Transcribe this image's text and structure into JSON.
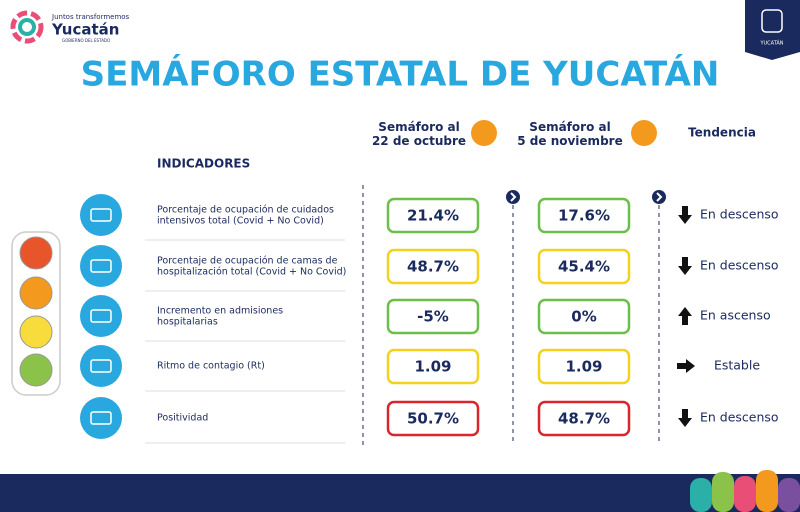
{
  "header": {
    "logo_tagline": "Juntos transformemos",
    "logo_name": "Yucatán",
    "logo_sub": "GOBIERNO DEL ESTADO",
    "emblem_label": "YUCATÁN",
    "title": "SEMÁFORO ESTATAL DE YUCATÁN"
  },
  "table": {
    "indicators_header": "INDICADORES",
    "columns": [
      "Semáforo al\n22 de octubre",
      "Semáforo al\n5 de noviembre",
      "Tendencia"
    ],
    "column_colors": [
      "#f39a1e",
      "#f39a1e"
    ],
    "rows": [
      {
        "indicator": "Porcentaje de ocupación de cuidados\nintensivos total (Covid + No Covid)",
        "values": [
          "21.4%",
          "17.6%"
        ],
        "colors": [
          "#6cbf4a",
          "#6cbf4a"
        ],
        "trend": "En descenso",
        "arrow": "down"
      },
      {
        "indicator": "Porcentaje de ocupación de camas de\nhospitalización total (Covid + No Covid)",
        "values": [
          "48.7%",
          "45.4%"
        ],
        "colors": [
          "#f2d21c",
          "#f2d21c"
        ],
        "trend": "En descenso",
        "arrow": "down"
      },
      {
        "indicator": "Incremento en admisiones\nhospitalarias",
        "values": [
          "-5%",
          "0%"
        ],
        "colors": [
          "#6cbf4a",
          "#6cbf4a"
        ],
        "trend": "En ascenso",
        "arrow": "up"
      },
      {
        "indicator": "Ritmo de contagio (Rt)",
        "values": [
          "1.09",
          "1.09"
        ],
        "colors": [
          "#f2d21c",
          "#f2d21c"
        ],
        "trend": "Estable",
        "arrow": "right"
      },
      {
        "indicator": "Positividad",
        "values": [
          "50.7%",
          "48.7%"
        ],
        "colors": [
          "#d9262c",
          "#d9262c"
        ],
        "trend": "En descenso",
        "arrow": "down"
      }
    ]
  }
}
